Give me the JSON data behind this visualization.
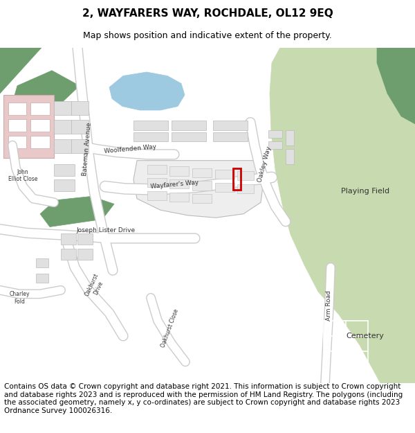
{
  "title": "2, WAYFARERS WAY, ROCHDALE, OL12 9EQ",
  "subtitle": "Map shows position and indicative extent of the property.",
  "footer": "Contains OS data © Crown copyright and database right 2021. This information is subject to Crown copyright and database rights 2023 and is reproduced with the permission of HM Land Registry. The polygons (including the associated geometry, namely x, y co-ordinates) are subject to Crown copyright and database rights 2023 Ordnance Survey 100026316.",
  "title_fontsize": 11,
  "subtitle_fontsize": 9,
  "footer_fontsize": 7.5,
  "bg_map_color": "#f2f2f0",
  "green_light": "#c8dab0",
  "green_dark": "#6e9e6e",
  "blue_water": "#9ecae1",
  "pink_building": "#e8c8c8",
  "road_color": "#ffffff",
  "road_outline": "#cccccc",
  "building_color": "#e0e0e0",
  "building_outline": "#bbbbbb",
  "red_plot": "#cc0000",
  "white_line": "#ffffff"
}
